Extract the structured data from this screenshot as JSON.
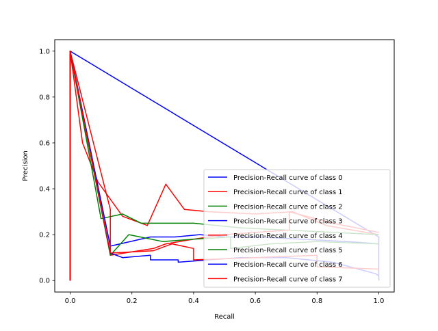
{
  "chart_data": {
    "type": "line",
    "title": "",
    "xlabel": "Recall",
    "ylabel": "Precision",
    "xlim": [
      -0.05,
      1.05
    ],
    "ylim": [
      -0.05,
      1.05
    ],
    "xticks": [
      "0.0",
      "0.2",
      "0.4",
      "0.6",
      "0.8",
      "1.0"
    ],
    "yticks": [
      "0.0",
      "0.2",
      "0.4",
      "0.6",
      "0.8",
      "1.0"
    ],
    "grid": false,
    "legend_position": "lower right",
    "series": [
      {
        "name": "Precision-Recall curve of class 0",
        "color": "#0000ff",
        "x": [
          0.0,
          0.0,
          1.0,
          1.0
        ],
        "y": [
          0.0,
          1.0,
          0.19,
          0.0
        ]
      },
      {
        "name": "Precision-Recall curve of class 1",
        "color": "#ff0000",
        "x": [
          0.0,
          0.0,
          0.04,
          0.09,
          0.17,
          0.25,
          0.31,
          0.37,
          0.45,
          0.6,
          0.72,
          0.83,
          1.0
        ],
        "y": [
          0.0,
          1.0,
          0.6,
          0.43,
          0.28,
          0.24,
          0.42,
          0.31,
          0.3,
          0.29,
          0.3,
          0.24,
          0.2
        ]
      },
      {
        "name": "Precision-Recall curve of class 2",
        "color": "#008000",
        "x": [
          0.0,
          0.0,
          0.1,
          0.17,
          0.23,
          0.4,
          0.55,
          0.7,
          0.85,
          1.0
        ],
        "y": [
          0.0,
          1.0,
          0.27,
          0.29,
          0.25,
          0.25,
          0.23,
          0.22,
          0.21,
          0.2
        ]
      },
      {
        "name": "Precision-Recall curve of class 3",
        "color": "#0000ff",
        "x": [
          0.0,
          0.0,
          0.13,
          0.26,
          0.34,
          0.42,
          0.5,
          0.6,
          0.75,
          0.9,
          1.0
        ],
        "y": [
          0.0,
          1.0,
          0.15,
          0.19,
          0.19,
          0.2,
          0.19,
          0.19,
          0.18,
          0.17,
          0.16
        ]
      },
      {
        "name": "Precision-Recall curve of class 4",
        "color": "#ff0000",
        "x": [
          0.0,
          0.0,
          0.13,
          0.13,
          0.27,
          0.31,
          0.4,
          0.5,
          0.6,
          0.71,
          0.71,
          0.85,
          1.0
        ],
        "y": [
          0.0,
          1.0,
          0.31,
          0.11,
          0.14,
          0.16,
          0.18,
          0.2,
          0.21,
          0.22,
          0.3,
          0.25,
          0.21
        ]
      },
      {
        "name": "Precision-Recall curve of class 5",
        "color": "#008000",
        "x": [
          0.0,
          0.0,
          0.13,
          0.19,
          0.3,
          0.4,
          0.52,
          0.52,
          0.65,
          0.8,
          1.0
        ],
        "y": [
          0.0,
          1.0,
          0.11,
          0.2,
          0.17,
          0.18,
          0.19,
          0.14,
          0.16,
          0.17,
          0.16
        ]
      },
      {
        "name": "Precision-Recall curve of class 6",
        "color": "#0000ff",
        "x": [
          0.0,
          0.0,
          0.13,
          0.17,
          0.26,
          0.26,
          0.35,
          0.35,
          0.45,
          0.55,
          0.7,
          0.85,
          0.99,
          1.0
        ],
        "y": [
          0.0,
          1.0,
          0.12,
          0.1,
          0.11,
          0.09,
          0.09,
          0.08,
          0.09,
          0.1,
          0.1,
          0.08,
          0.03,
          0.02
        ]
      },
      {
        "name": "Precision-Recall curve of class 7",
        "color": "#ff0000",
        "x": [
          0.0,
          0.0,
          0.13,
          0.27,
          0.33,
          0.4,
          0.4,
          0.6,
          0.8,
          0.8,
          1.0
        ],
        "y": [
          0.0,
          1.0,
          0.12,
          0.13,
          0.16,
          0.14,
          0.09,
          0.1,
          0.11,
          0.06,
          0.05
        ]
      }
    ]
  }
}
